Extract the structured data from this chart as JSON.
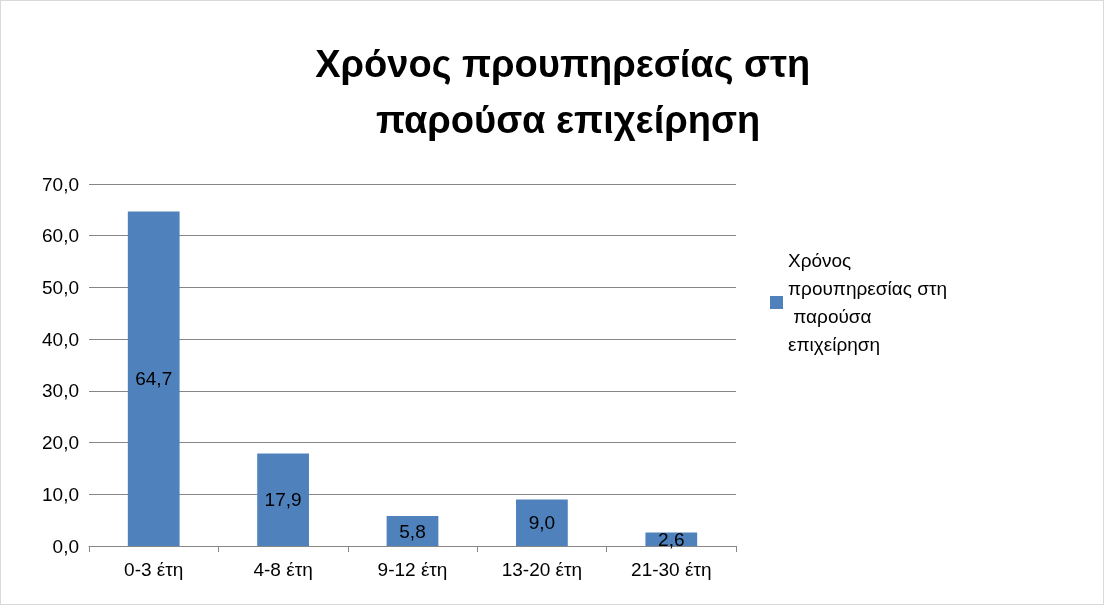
{
  "chart_data": {
    "type": "bar",
    "title": "Χρόνος προυπηρεσίας στη παρούσα επιχείρηση",
    "categories": [
      "0-3 έτη",
      "4-8 έτη",
      "9-12 έτη",
      "13-20 έτη",
      "21-30 έτη"
    ],
    "series": [
      {
        "name": "Χρόνος προυπηρεσίας στη παρούσα επιχείρηση",
        "color": "#4f81bd",
        "values": [
          64.7,
          17.9,
          5.8,
          9.0,
          2.6
        ],
        "value_labels": [
          "64,7",
          "17,9",
          "5,8",
          "9,0",
          "2,6"
        ]
      }
    ],
    "ylim": [
      0,
      70
    ],
    "yticks": [
      {
        "value": 0,
        "label": "0,0"
      },
      {
        "value": 10,
        "label": "10,0"
      },
      {
        "value": 20,
        "label": "20,0"
      },
      {
        "value": 30,
        "label": "30,0"
      },
      {
        "value": 40,
        "label": "40,0"
      },
      {
        "value": 50,
        "label": "50,0"
      },
      {
        "value": 60,
        "label": "60,0"
      },
      {
        "value": 70,
        "label": "70,0"
      }
    ],
    "grid": "y",
    "legend": "right"
  }
}
